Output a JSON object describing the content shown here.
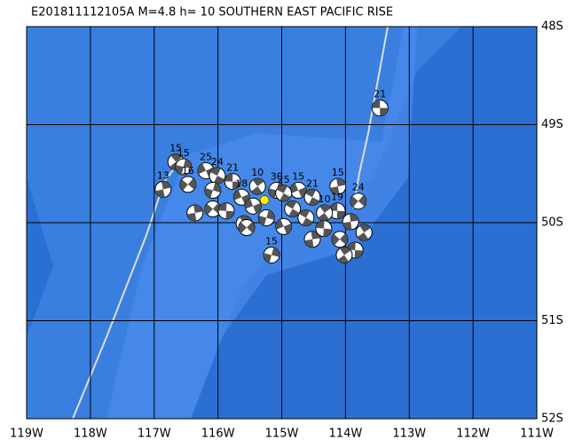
{
  "chart_data": {
    "type": "map",
    "title": "E201811112105A M=4.8 h= 10 SOUTHERN EAST PACIFIC RISE",
    "xlim": [
      -119,
      -111
    ],
    "ylim": [
      -52,
      -48
    ],
    "xticks": [
      {
        "value": -119,
        "label": "119W"
      },
      {
        "value": -118,
        "label": "118W"
      },
      {
        "value": -117,
        "label": "117W"
      },
      {
        "value": -116,
        "label": "116W"
      },
      {
        "value": -115,
        "label": "115W"
      },
      {
        "value": -114,
        "label": "114W"
      },
      {
        "value": -113,
        "label": "113W"
      },
      {
        "value": -112,
        "label": "112W"
      },
      {
        "value": -111,
        "label": "111W"
      }
    ],
    "yticks": [
      {
        "value": -48,
        "label": "48S"
      },
      {
        "value": -49,
        "label": "49S"
      },
      {
        "value": -50,
        "label": "50S"
      },
      {
        "value": -51,
        "label": "51S"
      },
      {
        "value": -52,
        "label": "52S"
      }
    ],
    "grid": true,
    "epicenter": {
      "lon": -115.27,
      "lat": -49.77,
      "color": "#ffee00"
    },
    "events": [
      {
        "lon": -113.46,
        "lat": -48.83,
        "label": "21"
      },
      {
        "lon": -116.66,
        "lat": -49.38,
        "label": "15"
      },
      {
        "lon": -116.54,
        "lat": -49.43,
        "label": "15"
      },
      {
        "lon": -116.19,
        "lat": -49.47,
        "label": "25"
      },
      {
        "lon": -116.01,
        "lat": -49.52,
        "label": "24"
      },
      {
        "lon": -116.86,
        "lat": -49.66,
        "label": "13"
      },
      {
        "lon": -116.47,
        "lat": -49.61,
        "label": "16"
      },
      {
        "lon": -115.77,
        "lat": -49.58,
        "label": "21"
      },
      {
        "lon": -115.38,
        "lat": -49.63,
        "label": "10"
      },
      {
        "lon": -115.08,
        "lat": -49.67,
        "label": "30"
      },
      {
        "lon": -114.74,
        "lat": -49.67,
        "label": "15"
      },
      {
        "lon": -114.52,
        "lat": -49.74,
        "label": "21"
      },
      {
        "lon": -114.12,
        "lat": -49.63,
        "label": "15"
      },
      {
        "lon": -113.8,
        "lat": -49.78,
        "label": "24"
      },
      {
        "lon": -114.13,
        "lat": -49.88,
        "label": "19"
      },
      {
        "lon": -114.33,
        "lat": -49.9,
        "label": "10"
      },
      {
        "lon": -115.16,
        "lat": -50.33,
        "label": "15"
      },
      {
        "lon": -115.63,
        "lat": -49.74,
        "label": "18"
      },
      {
        "lon": -114.97,
        "lat": -49.7,
        "label": "25"
      },
      {
        "lon": -116.36,
        "lat": -49.9,
        "label": null
      },
      {
        "lon": -116.08,
        "lat": -49.86,
        "label": null
      },
      {
        "lon": -115.87,
        "lat": -49.88,
        "label": null
      },
      {
        "lon": -115.59,
        "lat": -50.01,
        "label": null
      },
      {
        "lon": -115.24,
        "lat": -49.95,
        "label": null
      },
      {
        "lon": -114.97,
        "lat": -50.04,
        "label": null
      },
      {
        "lon": -114.62,
        "lat": -49.95,
        "label": null
      },
      {
        "lon": -114.52,
        "lat": -50.17,
        "label": null
      },
      {
        "lon": -114.09,
        "lat": -50.17,
        "label": null
      },
      {
        "lon": -113.85,
        "lat": -50.28,
        "label": null
      },
      {
        "lon": -114.02,
        "lat": -50.33,
        "label": null
      },
      {
        "lon": -116.08,
        "lat": -49.67,
        "label": null
      },
      {
        "lon": -115.45,
        "lat": -49.83,
        "label": null
      },
      {
        "lon": -114.83,
        "lat": -49.86,
        "label": null
      },
      {
        "lon": -113.92,
        "lat": -49.99,
        "label": null
      },
      {
        "lon": -115.55,
        "lat": -50.05,
        "label": null
      },
      {
        "lon": -114.34,
        "lat": -50.06,
        "label": null
      },
      {
        "lon": -113.71,
        "lat": -50.1,
        "label": null
      }
    ]
  }
}
